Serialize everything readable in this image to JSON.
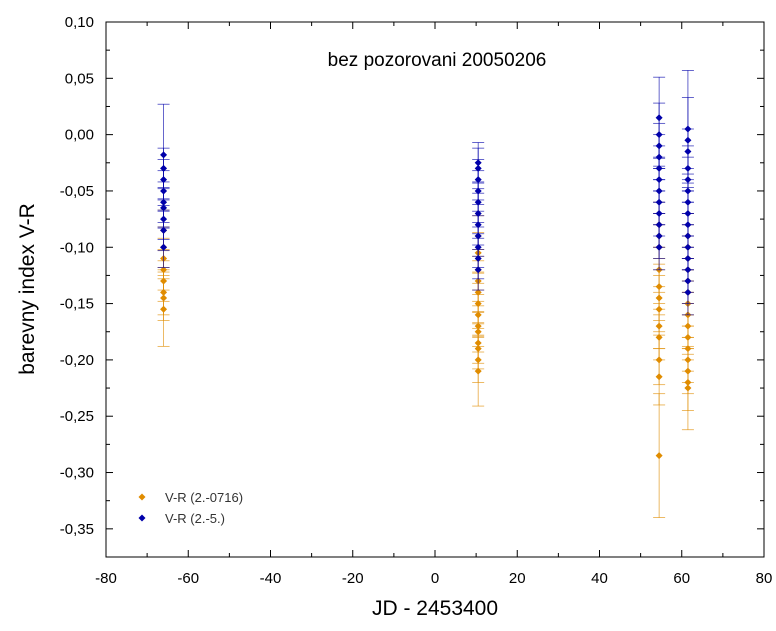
{
  "chart_data": {
    "type": "scatter",
    "title": "bez pozorovani 20050206",
    "xlabel": "JD - 2453400",
    "ylabel": "barevny index V-R",
    "xlim": [
      -80,
      80
    ],
    "ylim": [
      -0.375,
      0.1
    ],
    "xticks": [
      -80,
      -60,
      -40,
      -20,
      0,
      20,
      40,
      60,
      80
    ],
    "xtick_labels": [
      "-80",
      "-60",
      "-40",
      "-20",
      "0",
      "20",
      "40",
      "60",
      "80"
    ],
    "yticks": [
      0.1,
      0.05,
      0.0,
      -0.05,
      -0.1,
      -0.15,
      -0.2,
      -0.25,
      -0.3,
      -0.35
    ],
    "ytick_labels": [
      "0,10",
      "0,05",
      "0,00",
      "-0,05",
      "-0,10",
      "-0,15",
      "-0,20",
      "-0,25",
      "-0,30",
      "-0,35"
    ],
    "grid": false,
    "legend_position": "bottom-left",
    "series": [
      {
        "name": "V-R (2.-0716)",
        "color": "#e08c00",
        "marker": "diamond",
        "points": [
          {
            "x": -66,
            "y": -0.085,
            "err": 0.018
          },
          {
            "x": -66,
            "y": -0.1,
            "err": 0.018
          },
          {
            "x": -66,
            "y": -0.11,
            "err": 0.018
          },
          {
            "x": -66,
            "y": -0.12,
            "err": 0.018
          },
          {
            "x": -66,
            "y": -0.13,
            "err": 0.018
          },
          {
            "x": -66,
            "y": -0.14,
            "err": 0.02
          },
          {
            "x": -66,
            "y": -0.145,
            "err": 0.02
          },
          {
            "x": -66,
            "y": -0.155,
            "err": 0.033
          },
          {
            "x": 10.5,
            "y": -0.09,
            "err": 0.018
          },
          {
            "x": 10.5,
            "y": -0.105,
            "err": 0.018
          },
          {
            "x": 10.5,
            "y": -0.12,
            "err": 0.018
          },
          {
            "x": 10.5,
            "y": -0.13,
            "err": 0.018
          },
          {
            "x": 10.5,
            "y": -0.14,
            "err": 0.018
          },
          {
            "x": 10.5,
            "y": -0.15,
            "err": 0.018
          },
          {
            "x": 10.5,
            "y": -0.16,
            "err": 0.018
          },
          {
            "x": 10.5,
            "y": -0.17,
            "err": 0.018
          },
          {
            "x": 10.5,
            "y": -0.175,
            "err": 0.018
          },
          {
            "x": 10.5,
            "y": -0.185,
            "err": 0.018
          },
          {
            "x": 10.5,
            "y": -0.19,
            "err": 0.018
          },
          {
            "x": 10.5,
            "y": -0.2,
            "err": 0.02
          },
          {
            "x": 10.5,
            "y": -0.21,
            "err": 0.031
          },
          {
            "x": 54.5,
            "y": -0.08,
            "err": 0.02
          },
          {
            "x": 54.5,
            "y": -0.09,
            "err": 0.02
          },
          {
            "x": 54.5,
            "y": -0.1,
            "err": 0.02
          },
          {
            "x": 54.5,
            "y": -0.12,
            "err": 0.02
          },
          {
            "x": 54.5,
            "y": -0.135,
            "err": 0.02
          },
          {
            "x": 54.5,
            "y": -0.145,
            "err": 0.02
          },
          {
            "x": 54.5,
            "y": -0.155,
            "err": 0.02
          },
          {
            "x": 54.5,
            "y": -0.17,
            "err": 0.02
          },
          {
            "x": 54.5,
            "y": -0.18,
            "err": 0.02
          },
          {
            "x": 54.5,
            "y": -0.2,
            "err": 0.022
          },
          {
            "x": 54.5,
            "y": -0.215,
            "err": 0.025
          },
          {
            "x": 54.5,
            "y": -0.285,
            "err": 0.055
          },
          {
            "x": 61.5,
            "y": -0.09,
            "err": 0.02
          },
          {
            "x": 61.5,
            "y": -0.1,
            "err": 0.02
          },
          {
            "x": 61.5,
            "y": -0.11,
            "err": 0.02
          },
          {
            "x": 61.5,
            "y": -0.12,
            "err": 0.02
          },
          {
            "x": 61.5,
            "y": -0.13,
            "err": 0.02
          },
          {
            "x": 61.5,
            "y": -0.14,
            "err": 0.02
          },
          {
            "x": 61.5,
            "y": -0.15,
            "err": 0.02
          },
          {
            "x": 61.5,
            "y": -0.16,
            "err": 0.02
          },
          {
            "x": 61.5,
            "y": -0.17,
            "err": 0.02
          },
          {
            "x": 61.5,
            "y": -0.18,
            "err": 0.02
          },
          {
            "x": 61.5,
            "y": -0.19,
            "err": 0.02
          },
          {
            "x": 61.5,
            "y": -0.2,
            "err": 0.02
          },
          {
            "x": 61.5,
            "y": -0.21,
            "err": 0.02
          },
          {
            "x": 61.5,
            "y": -0.22,
            "err": 0.025
          },
          {
            "x": 61.5,
            "y": -0.225,
            "err": 0.037
          }
        ]
      },
      {
        "name": "V-R (2.-5.)",
        "color": "#0000aa",
        "marker": "diamond",
        "points": [
          {
            "x": -66,
            "y": -0.018,
            "err": 0.045
          },
          {
            "x": -66,
            "y": -0.03,
            "err": 0.018
          },
          {
            "x": -66,
            "y": -0.04,
            "err": 0.018
          },
          {
            "x": -66,
            "y": -0.05,
            "err": 0.018
          },
          {
            "x": -66,
            "y": -0.06,
            "err": 0.018
          },
          {
            "x": -66,
            "y": -0.065,
            "err": 0.018
          },
          {
            "x": -66,
            "y": -0.075,
            "err": 0.018
          },
          {
            "x": -66,
            "y": -0.085,
            "err": 0.018
          },
          {
            "x": -66,
            "y": -0.1,
            "err": 0.018
          },
          {
            "x": 10.5,
            "y": -0.025,
            "err": 0.018
          },
          {
            "x": 10.5,
            "y": -0.03,
            "err": 0.018
          },
          {
            "x": 10.5,
            "y": -0.04,
            "err": 0.018
          },
          {
            "x": 10.5,
            "y": -0.05,
            "err": 0.018
          },
          {
            "x": 10.5,
            "y": -0.06,
            "err": 0.018
          },
          {
            "x": 10.5,
            "y": -0.07,
            "err": 0.018
          },
          {
            "x": 10.5,
            "y": -0.08,
            "err": 0.018
          },
          {
            "x": 10.5,
            "y": -0.09,
            "err": 0.018
          },
          {
            "x": 10.5,
            "y": -0.1,
            "err": 0.018
          },
          {
            "x": 10.5,
            "y": -0.11,
            "err": 0.018
          },
          {
            "x": 10.5,
            "y": -0.12,
            "err": 0.018
          },
          {
            "x": 54.5,
            "y": 0.015,
            "err": 0.036
          },
          {
            "x": 54.5,
            "y": 0.0,
            "err": 0.028
          },
          {
            "x": 54.5,
            "y": -0.01,
            "err": 0.02
          },
          {
            "x": 54.5,
            "y": -0.02,
            "err": 0.02
          },
          {
            "x": 54.5,
            "y": -0.03,
            "err": 0.02
          },
          {
            "x": 54.5,
            "y": -0.04,
            "err": 0.02
          },
          {
            "x": 54.5,
            "y": -0.05,
            "err": 0.02
          },
          {
            "x": 54.5,
            "y": -0.06,
            "err": 0.02
          },
          {
            "x": 54.5,
            "y": -0.07,
            "err": 0.02
          },
          {
            "x": 54.5,
            "y": -0.08,
            "err": 0.02
          },
          {
            "x": 54.5,
            "y": -0.09,
            "err": 0.02
          },
          {
            "x": 54.5,
            "y": -0.1,
            "err": 0.02
          },
          {
            "x": 61.5,
            "y": 0.005,
            "err": 0.052
          },
          {
            "x": 61.5,
            "y": -0.005,
            "err": 0.038
          },
          {
            "x": 61.5,
            "y": -0.015,
            "err": 0.02
          },
          {
            "x": 61.5,
            "y": -0.03,
            "err": 0.02
          },
          {
            "x": 61.5,
            "y": -0.04,
            "err": 0.02
          },
          {
            "x": 61.5,
            "y": -0.05,
            "err": 0.02
          },
          {
            "x": 61.5,
            "y": -0.06,
            "err": 0.02
          },
          {
            "x": 61.5,
            "y": -0.07,
            "err": 0.02
          },
          {
            "x": 61.5,
            "y": -0.08,
            "err": 0.02
          },
          {
            "x": 61.5,
            "y": -0.09,
            "err": 0.02
          },
          {
            "x": 61.5,
            "y": -0.1,
            "err": 0.02
          },
          {
            "x": 61.5,
            "y": -0.11,
            "err": 0.02
          },
          {
            "x": 61.5,
            "y": -0.12,
            "err": 0.02
          },
          {
            "x": 61.5,
            "y": -0.13,
            "err": 0.02
          },
          {
            "x": 61.5,
            "y": -0.14,
            "err": 0.02
          }
        ]
      }
    ]
  }
}
